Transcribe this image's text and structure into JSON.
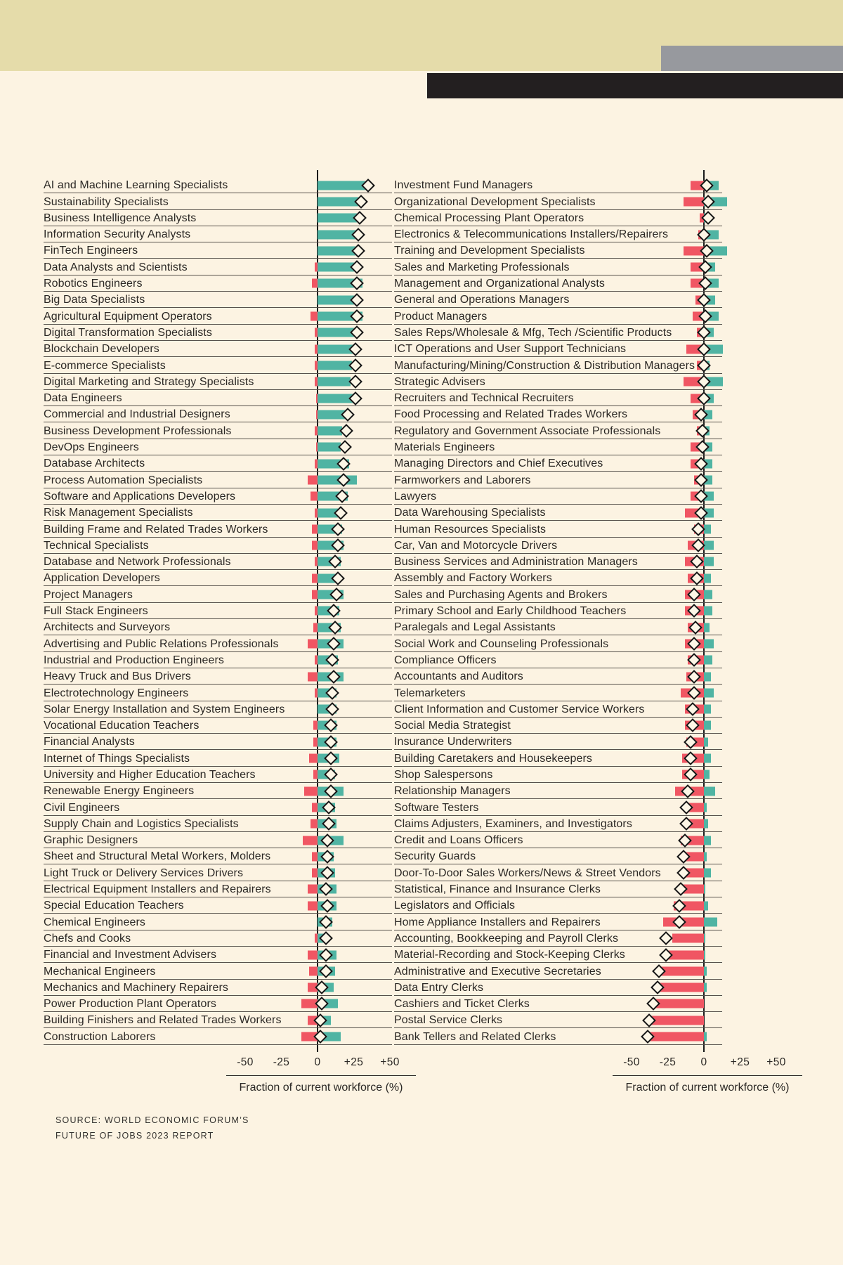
{
  "colors": {
    "background": "#fcf3e2",
    "khaki_band": "#e5dcaa",
    "gray_band": "#97999e",
    "black_band": "#231f20",
    "growth_teal": "#50b4a3",
    "decline_red": "#f05663",
    "row_line": "#56514b"
  },
  "axis": {
    "ticks": [
      "-50",
      "-25",
      "0",
      "+25",
      "+50"
    ],
    "label": "Fraction of current workforce (%)"
  },
  "source": {
    "line1": "SOURCE: WORLD ECONOMIC FORUM’S",
    "line2": "FUTURE OF JOBS 2023 REPORT"
  },
  "chart_data": {
    "type": "bar",
    "title": "",
    "xlabel": "Fraction of current workforce (%)",
    "xlim": [
      -50,
      50
    ],
    "units": "percent",
    "encoding": {
      "teal_bar": "expected job growth (%)",
      "red_bar": "expected job decline (%)",
      "diamond": "net change (%)"
    },
    "left": [
      {
        "label": "AI and Machine Learning Specialists",
        "growth": 33,
        "decline": 0,
        "net": 35
      },
      {
        "label": "Sustainability Specialists",
        "growth": 28,
        "decline": 0,
        "net": 30
      },
      {
        "label": "Business Intelligence Analysts",
        "growth": 27,
        "decline": 0,
        "net": 29
      },
      {
        "label": "Information Security Analysts",
        "growth": 26,
        "decline": 0,
        "net": 28
      },
      {
        "label": "FinTech Engineers",
        "growth": 26,
        "decline": 0,
        "net": 28
      },
      {
        "label": "Data Analysts and Scientists",
        "growth": 26,
        "decline": 2,
        "net": 27
      },
      {
        "label": "Robotics Engineers",
        "growth": 31,
        "decline": 4,
        "net": 27
      },
      {
        "label": "Big Data Specialists",
        "growth": 26,
        "decline": 0,
        "net": 27
      },
      {
        "label": "Agricultural Equipment Operators",
        "growth": 31,
        "decline": 5,
        "net": 27
      },
      {
        "label": "Digital Transformation Specialists",
        "growth": 26,
        "decline": 2,
        "net": 27
      },
      {
        "label": "Blockchain Developers",
        "growth": 25,
        "decline": 2,
        "net": 26
      },
      {
        "label": "E-commerce Specialists",
        "growth": 24,
        "decline": 2,
        "net": 26
      },
      {
        "label": "Digital Marketing and Strategy Specialists",
        "growth": 23,
        "decline": 2,
        "net": 26
      },
      {
        "label": "Data Engineers",
        "growth": 25,
        "decline": 1,
        "net": 26
      },
      {
        "label": "Commercial and Industrial Designers",
        "growth": 20,
        "decline": 1,
        "net": 21
      },
      {
        "label": "Business Development Professionals",
        "growth": 17,
        "decline": 2,
        "net": 20
      },
      {
        "label": "DevOps Engineers",
        "growth": 16,
        "decline": 1,
        "net": 19
      },
      {
        "label": "Database Architects",
        "growth": 22,
        "decline": 2,
        "net": 18
      },
      {
        "label": "Process Automation Specialists",
        "growth": 27,
        "decline": 7,
        "net": 18
      },
      {
        "label": "Software and Applications Developers",
        "growth": 21,
        "decline": 5,
        "net": 17
      },
      {
        "label": "Risk Management Specialists",
        "growth": 14,
        "decline": 2,
        "net": 16
      },
      {
        "label": "Building Frame and Related Trades Workers",
        "growth": 17,
        "decline": 4,
        "net": 14
      },
      {
        "label": "Technical Specialists",
        "growth": 18,
        "decline": 4,
        "net": 14
      },
      {
        "label": "Database and Network Professionals",
        "growth": 16,
        "decline": 2,
        "net": 12
      },
      {
        "label": "Application Developers",
        "growth": 15,
        "decline": 4,
        "net": 14
      },
      {
        "label": "Project Managers",
        "growth": 18,
        "decline": 4,
        "net": 13
      },
      {
        "label": "Full Stack Engineers",
        "growth": 15,
        "decline": 2,
        "net": 11
      },
      {
        "label": "Architects and Surveyors",
        "growth": 16,
        "decline": 3,
        "net": 12
      },
      {
        "label": "Advertising and Public Relations Professionals",
        "growth": 18,
        "decline": 7,
        "net": 11
      },
      {
        "label": "Industrial and Production Engineers",
        "growth": 14,
        "decline": 2,
        "net": 10
      },
      {
        "label": "Heavy Truck and Bus Drivers",
        "growth": 18,
        "decline": 7,
        "net": 11
      },
      {
        "label": "Electrotechnology Engineers",
        "growth": 13,
        "decline": 2,
        "net": 10
      },
      {
        "label": "Solar Energy Installation and System Engineers",
        "growth": 13,
        "decline": 0,
        "net": 10
      },
      {
        "label": "Vocational Education Teachers",
        "growth": 13,
        "decline": 3,
        "net": 9
      },
      {
        "label": "Financial Analysts",
        "growth": 13,
        "decline": 3,
        "net": 9
      },
      {
        "label": "Internet of Things Specialists",
        "growth": 15,
        "decline": 6,
        "net": 9
      },
      {
        "label": "University and Higher Education Teachers",
        "growth": 12,
        "decline": 3,
        "net": 9
      },
      {
        "label": "Renewable Energy Engineers",
        "growth": 18,
        "decline": 9,
        "net": 9
      },
      {
        "label": "Civil Engineers",
        "growth": 12,
        "decline": 4,
        "net": 8
      },
      {
        "label": "Supply Chain and Logistics Specialists",
        "growth": 13,
        "decline": 5,
        "net": 8
      },
      {
        "label": "Graphic Designers",
        "growth": 18,
        "decline": 10,
        "net": 7
      },
      {
        "label": "Sheet and Structural Metal Workers, Molders",
        "growth": 11,
        "decline": 4,
        "net": 7
      },
      {
        "label": "Light Truck or Delivery Services Drivers",
        "growth": 12,
        "decline": 4,
        "net": 7
      },
      {
        "label": "Electrical Equipment Installers and Repairers",
        "growth": 13,
        "decline": 7,
        "net": 6
      },
      {
        "label": "Special Education Teachers",
        "growth": 13,
        "decline": 7,
        "net": 7
      },
      {
        "label": "Chemical Engineers",
        "growth": 10,
        "decline": 0,
        "net": 6
      },
      {
        "label": "Chefs and Cooks",
        "growth": 7,
        "decline": 2,
        "net": 6
      },
      {
        "label": "Financial and Investment Advisers",
        "growth": 13,
        "decline": 7,
        "net": 6
      },
      {
        "label": "Mechanical Engineers",
        "growth": 12,
        "decline": 6,
        "net": 6
      },
      {
        "label": "Mechanics and Machinery Repairers",
        "growth": 11,
        "decline": 7,
        "net": 3
      },
      {
        "label": "Power Production Plant Operators",
        "growth": 14,
        "decline": 11,
        "net": 3
      },
      {
        "label": "Building Finishers and Related Trades Workers",
        "growth": 9,
        "decline": 7,
        "net": 2
      },
      {
        "label": "Construction Laborers",
        "growth": 16,
        "decline": 11,
        "net": 2
      }
    ],
    "right": [
      {
        "label": "Investment Fund Managers",
        "growth": 10,
        "decline": 9,
        "net": 2
      },
      {
        "label": "Organizational Development Specialists",
        "growth": 16,
        "decline": 14,
        "net": 3
      },
      {
        "label": "Chemical Processing Plant Operators",
        "growth": 2,
        "decline": 3,
        "net": 3
      },
      {
        "label": "Electronics & Telecommunications Installers/Repairers",
        "growth": 10,
        "decline": 4,
        "net": 0
      },
      {
        "label": "Training and Development Specialists",
        "growth": 16,
        "decline": 14,
        "net": 2
      },
      {
        "label": "Sales and Marketing Professionals",
        "growth": 8,
        "decline": 9,
        "net": 1
      },
      {
        "label": "Management and Organizational Analysts",
        "growth": 10,
        "decline": 9,
        "net": 1
      },
      {
        "label": "General and Operations Managers",
        "growth": 8,
        "decline": 6,
        "net": 0
      },
      {
        "label": "Product Managers",
        "growth": 10,
        "decline": 8,
        "net": 1
      },
      {
        "label": "Sales Reps/Wholesale & Mfg, Tech /Scientific Products",
        "growth": 7,
        "decline": 5,
        "net": 0
      },
      {
        "label": "ICT Operations and User Support Technicians",
        "growth": 13,
        "decline": 12,
        "net": 0
      },
      {
        "label": "Manufacturing/Mining/Construction & Distribution Managers",
        "growth": 4,
        "decline": 5,
        "net": 0
      },
      {
        "label": "Strategic Advisers",
        "growth": 13,
        "decline": 14,
        "net": 0
      },
      {
        "label": "Recruiters and Technical Recruiters",
        "growth": 7,
        "decline": 9,
        "net": 0
      },
      {
        "label": "Food Processing and Related Trades Workers",
        "growth": 6,
        "decline": 8,
        "net": -2
      },
      {
        "label": "Regulatory and Government Associate Professionals",
        "growth": 4,
        "decline": 5,
        "net": -1
      },
      {
        "label": "Materials Engineers",
        "growth": 6,
        "decline": 9,
        "net": -1
      },
      {
        "label": "Managing Directors and Chief Executives",
        "growth": 6,
        "decline": 9,
        "net": -2
      },
      {
        "label": "Farmworkers and Laborers",
        "growth": 6,
        "decline": 7,
        "net": -2
      },
      {
        "label": "Lawyers",
        "growth": 7,
        "decline": 9,
        "net": -2
      },
      {
        "label": "Data Warehousing Specialists",
        "growth": 7,
        "decline": 13,
        "net": -2
      },
      {
        "label": "Human Resources Specialists",
        "growth": 5,
        "decline": 7,
        "net": -4
      },
      {
        "label": "Car, Van and Motorcycle Drivers",
        "growth": 7,
        "decline": 11,
        "net": -4
      },
      {
        "label": "Business Services and Administration Managers",
        "growth": 7,
        "decline": 13,
        "net": -5
      },
      {
        "label": "Assembly and Factory Workers",
        "growth": 5,
        "decline": 11,
        "net": -5
      },
      {
        "label": "Sales and Purchasing Agents and Brokers",
        "growth": 6,
        "decline": 13,
        "net": -7
      },
      {
        "label": "Primary School and Early Childhood Teachers",
        "growth": 6,
        "decline": 13,
        "net": -7
      },
      {
        "label": "Paralegals and Legal Assistants",
        "growth": 4,
        "decline": 11,
        "net": -6
      },
      {
        "label": "Social Work and Counseling Professionals",
        "growth": 7,
        "decline": 13,
        "net": -7
      },
      {
        "label": "Compliance Officers",
        "growth": 6,
        "decline": 11,
        "net": -7
      },
      {
        "label": "Accountants and Auditors",
        "growth": 5,
        "decline": 12,
        "net": -7
      },
      {
        "label": "Telemarketers",
        "growth": 7,
        "decline": 16,
        "net": -7
      },
      {
        "label": "Client Information and Customer Service Workers",
        "growth": 5,
        "decline": 13,
        "net": -8
      },
      {
        "label": "Social Media Strategist",
        "growth": 5,
        "decline": 13,
        "net": -8
      },
      {
        "label": "Insurance Underwriters",
        "growth": 3,
        "decline": 12,
        "net": -9
      },
      {
        "label": "Building Caretakers and Housekeepers",
        "growth": 5,
        "decline": 15,
        "net": -9
      },
      {
        "label": "Shop Salespersons",
        "growth": 4,
        "decline": 15,
        "net": -9
      },
      {
        "label": "Relationship Managers",
        "growth": 8,
        "decline": 20,
        "net": -11
      },
      {
        "label": "Software Testers",
        "growth": 2,
        "decline": 14,
        "net": -12
      },
      {
        "label": "Claims Adjusters, Examiners, and Investigators",
        "growth": 3,
        "decline": 13,
        "net": -12
      },
      {
        "label": "Credit and Loans Officers",
        "growth": 5,
        "decline": 16,
        "net": -13
      },
      {
        "label": "Security Guards",
        "growth": 2,
        "decline": 16,
        "net": -14
      },
      {
        "label": "Door-To-Door Sales Workers/News & Street Vendors",
        "growth": 5,
        "decline": 16,
        "net": -14
      },
      {
        "label": "Statistical, Finance and Insurance Clerks",
        "growth": 1,
        "decline": 18,
        "net": -16
      },
      {
        "label": "Legislators and Officials",
        "growth": 3,
        "decline": 21,
        "net": -17
      },
      {
        "label": "Home Appliance Installers and Repairers",
        "growth": 9,
        "decline": 28,
        "net": -17
      },
      {
        "label": "Accounting, Bookkeeping and Payroll Clerks",
        "growth": 1,
        "decline": 22,
        "net": -26
      },
      {
        "label": "Material-Recording and Stock-Keeping Clerks",
        "growth": 1,
        "decline": 26,
        "net": -26
      },
      {
        "label": "Administrative and Executive Secretaries",
        "growth": 2,
        "decline": 30,
        "net": -31
      },
      {
        "label": "Data Entry Clerks",
        "growth": 2,
        "decline": 33,
        "net": -32
      },
      {
        "label": "Cashiers and Ticket Clerks",
        "growth": 0,
        "decline": 34,
        "net": -35
      },
      {
        "label": "Postal Service Clerks",
        "growth": 0,
        "decline": 39,
        "net": -38
      },
      {
        "label": "Bank Tellers and Related Clerks",
        "growth": 2,
        "decline": 40,
        "net": -39
      }
    ]
  }
}
